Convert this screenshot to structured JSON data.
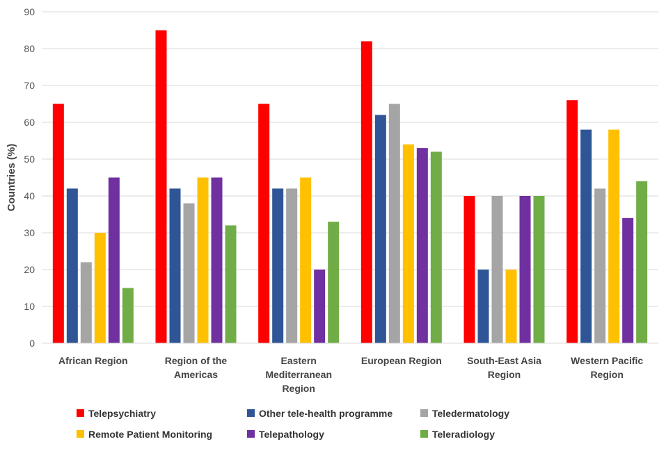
{
  "chart_data": {
    "type": "bar",
    "title": "",
    "xlabel": "",
    "ylabel": "Countries (%)",
    "ylim": [
      0,
      90
    ],
    "yticks": [
      0,
      10,
      20,
      30,
      40,
      50,
      60,
      70,
      80,
      90
    ],
    "grid": true,
    "legend_position": "bottom",
    "categories": [
      [
        "African Region"
      ],
      [
        "Region of the",
        "Americas"
      ],
      [
        "Eastern",
        "Mediterranean",
        "Region"
      ],
      [
        "European Region"
      ],
      [
        "South-East Asia",
        "Region"
      ],
      [
        "Western Pacific",
        "Region"
      ]
    ],
    "series": [
      {
        "name": "Telepsychiatry",
        "color": "#ff0000",
        "values": [
          65,
          85,
          65,
          82,
          40,
          66
        ]
      },
      {
        "name": "Other tele-health programme",
        "color": "#2f5597",
        "values": [
          42,
          42,
          42,
          62,
          20,
          58
        ]
      },
      {
        "name": "Teledermatology",
        "color": "#a5a5a5",
        "values": [
          22,
          38,
          42,
          65,
          40,
          42
        ]
      },
      {
        "name": "Remote Patient Monitoring",
        "color": "#ffc000",
        "values": [
          30,
          45,
          45,
          54,
          20,
          58
        ]
      },
      {
        "name": "Telepathology",
        "color": "#7030a0",
        "values": [
          45,
          45,
          20,
          53,
          40,
          34
        ]
      },
      {
        "name": "Teleradiology",
        "color": "#70ad47",
        "values": [
          15,
          32,
          33,
          52,
          40,
          44
        ]
      }
    ]
  }
}
